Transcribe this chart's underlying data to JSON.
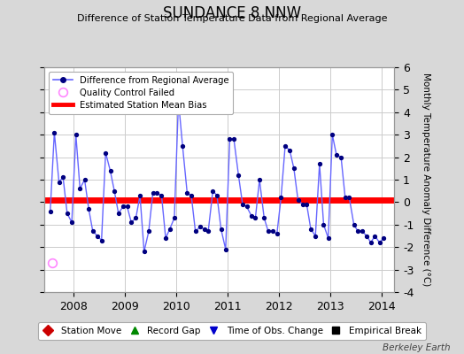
{
  "title": "SUNDANCE 8 NNW",
  "subtitle": "Difference of Station Temperature Data from Regional Average",
  "ylabel": "Monthly Temperature Anomaly Difference (°C)",
  "bias_level": 0.1,
  "xlim_start": 2007.42,
  "xlim_end": 2014.25,
  "ylim": [
    -4,
    6
  ],
  "yticks": [
    -4,
    -3,
    -2,
    -1,
    0,
    1,
    2,
    3,
    4,
    5,
    6
  ],
  "xticks": [
    2008,
    2009,
    2010,
    2011,
    2012,
    2013,
    2014
  ],
  "background_color": "#d8d8d8",
  "plot_bg_color": "#ffffff",
  "line_color": "#6666ff",
  "marker_color": "#000080",
  "bias_color": "#ff0000",
  "qc_fail_x": 2007.58,
  "qc_fail_y": -2.7,
  "monthly_data": {
    "times": [
      2007.54,
      2007.62,
      2007.71,
      2007.79,
      2007.87,
      2007.96,
      2008.04,
      2008.12,
      2008.21,
      2008.29,
      2008.37,
      2008.46,
      2008.54,
      2008.62,
      2008.71,
      2008.79,
      2008.87,
      2008.96,
      2009.04,
      2009.12,
      2009.21,
      2009.29,
      2009.37,
      2009.46,
      2009.54,
      2009.62,
      2009.71,
      2009.79,
      2009.87,
      2009.96,
      2010.04,
      2010.12,
      2010.21,
      2010.29,
      2010.37,
      2010.46,
      2010.54,
      2010.62,
      2010.71,
      2010.79,
      2010.87,
      2010.96,
      2011.04,
      2011.12,
      2011.21,
      2011.29,
      2011.37,
      2011.46,
      2011.54,
      2011.62,
      2011.71,
      2011.79,
      2011.87,
      2011.96,
      2012.04,
      2012.12,
      2012.21,
      2012.29,
      2012.37,
      2012.46,
      2012.54,
      2012.62,
      2012.71,
      2012.79,
      2012.87,
      2012.96,
      2013.04,
      2013.12,
      2013.21,
      2013.29,
      2013.37,
      2013.46,
      2013.54,
      2013.62,
      2013.71,
      2013.79,
      2013.87,
      2013.96,
      2014.04
    ],
    "values": [
      -0.4,
      3.1,
      0.9,
      1.1,
      -0.5,
      -0.9,
      3.0,
      0.6,
      1.0,
      -0.3,
      -1.3,
      -1.5,
      -1.7,
      2.2,
      1.4,
      0.5,
      -0.5,
      -0.2,
      -0.2,
      -0.9,
      -0.7,
      0.3,
      -2.2,
      -1.3,
      0.4,
      0.4,
      0.3,
      -1.6,
      -1.2,
      -0.7,
      4.5,
      2.5,
      0.4,
      0.3,
      -1.3,
      -1.1,
      -1.2,
      -1.3,
      0.5,
      0.3,
      -1.2,
      -2.1,
      2.8,
      2.8,
      1.2,
      -0.1,
      -0.2,
      -0.6,
      -0.7,
      1.0,
      -0.7,
      -1.3,
      -1.3,
      -1.4,
      0.2,
      2.5,
      2.3,
      1.5,
      0.1,
      -0.1,
      -0.1,
      -1.2,
      -1.5,
      1.7,
      -1.0,
      -1.6,
      3.0,
      2.1,
      2.0,
      0.2,
      0.2,
      -1.0,
      -1.3,
      -1.3,
      -1.5,
      -1.8,
      -1.5,
      -1.8,
      -1.6
    ]
  },
  "bottom_legend": [
    {
      "label": "Station Move",
      "color": "#cc0000",
      "marker": "D"
    },
    {
      "label": "Record Gap",
      "color": "#008800",
      "marker": "^"
    },
    {
      "label": "Time of Obs. Change",
      "color": "#0000cc",
      "marker": "v"
    },
    {
      "label": "Empirical Break",
      "color": "#000000",
      "marker": "s"
    }
  ],
  "watermark": "Berkeley Earth",
  "grid_color": "#cccccc"
}
